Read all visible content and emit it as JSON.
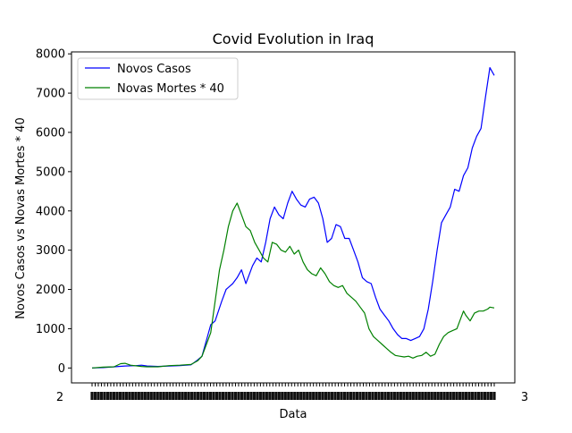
{
  "chart_data": {
    "type": "line",
    "title": "Covid Evolution in Iraq",
    "xlabel": "Data",
    "ylabel": "Novos Casos vs Novas Mortes * 40",
    "ylim": [
      -380,
      8050
    ],
    "yticks": [
      0,
      1000,
      2000,
      3000,
      4000,
      5000,
      6000,
      7000,
      8000
    ],
    "ytick_labels": [
      "0",
      "1000",
      "2000",
      "3000",
      "4000",
      "5000",
      "6000",
      "7000",
      "8000"
    ],
    "xtick_count": 130,
    "xtick_text_left": "2",
    "xtick_text_right": "3",
    "grid": false,
    "legend_position": "top-left",
    "series": [
      {
        "name": "Novos Casos",
        "color": "#0000ff",
        "points": [
          [
            0,
            0
          ],
          [
            10,
            10
          ],
          [
            20,
            30
          ],
          [
            30,
            50
          ],
          [
            40,
            60
          ],
          [
            45,
            70
          ],
          [
            50,
            50
          ],
          [
            60,
            40
          ],
          [
            70,
            50
          ],
          [
            80,
            60
          ],
          [
            90,
            80
          ],
          [
            96,
            200
          ],
          [
            100,
            300
          ],
          [
            104,
            700
          ],
          [
            108,
            1100
          ],
          [
            112,
            1200
          ],
          [
            118,
            1700
          ],
          [
            122,
            2000
          ],
          [
            128,
            2150
          ],
          [
            132,
            2300
          ],
          [
            136,
            2500
          ],
          [
            140,
            2150
          ],
          [
            146,
            2600
          ],
          [
            150,
            2800
          ],
          [
            154,
            2700
          ],
          [
            158,
            3200
          ],
          [
            162,
            3800
          ],
          [
            166,
            4100
          ],
          [
            170,
            3900
          ],
          [
            174,
            3800
          ],
          [
            178,
            4200
          ],
          [
            182,
            4500
          ],
          [
            186,
            4300
          ],
          [
            190,
            4150
          ],
          [
            194,
            4100
          ],
          [
            198,
            4300
          ],
          [
            202,
            4350
          ],
          [
            206,
            4200
          ],
          [
            210,
            3800
          ],
          [
            214,
            3200
          ],
          [
            218,
            3300
          ],
          [
            222,
            3650
          ],
          [
            226,
            3600
          ],
          [
            230,
            3300
          ],
          [
            234,
            3300
          ],
          [
            238,
            3000
          ],
          [
            242,
            2700
          ],
          [
            246,
            2300
          ],
          [
            250,
            2200
          ],
          [
            254,
            2150
          ],
          [
            258,
            1800
          ],
          [
            262,
            1500
          ],
          [
            266,
            1350
          ],
          [
            270,
            1200
          ],
          [
            274,
            1000
          ],
          [
            278,
            850
          ],
          [
            282,
            750
          ],
          [
            286,
            750
          ],
          [
            290,
            700
          ],
          [
            294,
            750
          ],
          [
            298,
            800
          ],
          [
            302,
            1000
          ],
          [
            306,
            1500
          ],
          [
            310,
            2200
          ],
          [
            314,
            3000
          ],
          [
            318,
            3700
          ],
          [
            322,
            3900
          ],
          [
            326,
            4100
          ],
          [
            330,
            4550
          ],
          [
            334,
            4500
          ],
          [
            338,
            4900
          ],
          [
            342,
            5100
          ],
          [
            346,
            5600
          ],
          [
            350,
            5900
          ],
          [
            354,
            6100
          ],
          [
            358,
            6900
          ],
          [
            362,
            7650
          ],
          [
            366,
            7450
          ]
        ]
      },
      {
        "name": "Novas Mortes * 40",
        "color": "#008000",
        "points": [
          [
            0,
            0
          ],
          [
            10,
            20
          ],
          [
            20,
            30
          ],
          [
            26,
            110
          ],
          [
            30,
            120
          ],
          [
            35,
            70
          ],
          [
            45,
            40
          ],
          [
            50,
            30
          ],
          [
            60,
            30
          ],
          [
            70,
            60
          ],
          [
            80,
            70
          ],
          [
            90,
            90
          ],
          [
            96,
            180
          ],
          [
            100,
            300
          ],
          [
            104,
            600
          ],
          [
            108,
            900
          ],
          [
            112,
            1700
          ],
          [
            116,
            2500
          ],
          [
            120,
            3000
          ],
          [
            124,
            3600
          ],
          [
            128,
            4000
          ],
          [
            132,
            4200
          ],
          [
            136,
            3900
          ],
          [
            140,
            3600
          ],
          [
            144,
            3500
          ],
          [
            148,
            3200
          ],
          [
            152,
            3000
          ],
          [
            156,
            2800
          ],
          [
            160,
            2700
          ],
          [
            164,
            3200
          ],
          [
            168,
            3150
          ],
          [
            172,
            3000
          ],
          [
            176,
            2950
          ],
          [
            180,
            3100
          ],
          [
            184,
            2900
          ],
          [
            188,
            3000
          ],
          [
            192,
            2700
          ],
          [
            196,
            2500
          ],
          [
            200,
            2400
          ],
          [
            204,
            2350
          ],
          [
            208,
            2550
          ],
          [
            212,
            2400
          ],
          [
            216,
            2200
          ],
          [
            220,
            2100
          ],
          [
            224,
            2050
          ],
          [
            228,
            2100
          ],
          [
            232,
            1900
          ],
          [
            236,
            1800
          ],
          [
            240,
            1700
          ],
          [
            244,
            1550
          ],
          [
            248,
            1400
          ],
          [
            252,
            1000
          ],
          [
            256,
            800
          ],
          [
            260,
            700
          ],
          [
            264,
            600
          ],
          [
            268,
            500
          ],
          [
            272,
            400
          ],
          [
            276,
            320
          ],
          [
            280,
            300
          ],
          [
            284,
            280
          ],
          [
            288,
            300
          ],
          [
            292,
            250
          ],
          [
            296,
            300
          ],
          [
            300,
            320
          ],
          [
            304,
            400
          ],
          [
            308,
            300
          ],
          [
            312,
            350
          ],
          [
            316,
            600
          ],
          [
            320,
            800
          ],
          [
            324,
            900
          ],
          [
            328,
            950
          ],
          [
            332,
            1000
          ],
          [
            336,
            1300
          ],
          [
            338,
            1450
          ],
          [
            340,
            1350
          ],
          [
            344,
            1200
          ],
          [
            348,
            1400
          ],
          [
            352,
            1450
          ],
          [
            356,
            1450
          ],
          [
            360,
            1500
          ],
          [
            362,
            1550
          ],
          [
            366,
            1530
          ]
        ]
      }
    ]
  }
}
